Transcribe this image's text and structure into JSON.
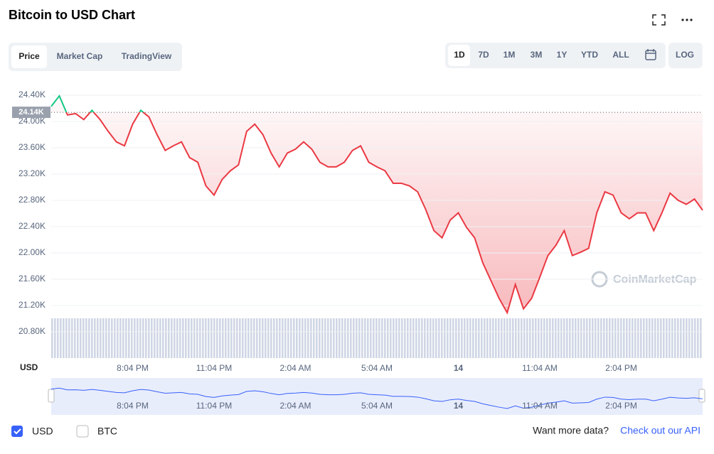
{
  "header": {
    "title": "Bitcoin to USD Chart"
  },
  "tabs": [
    "Price",
    "Market Cap",
    "TradingView"
  ],
  "ranges": [
    "1D",
    "7D",
    "1M",
    "3M",
    "1Y",
    "YTD",
    "ALL"
  ],
  "log_button": "LOG",
  "legend": [
    "USD",
    "BTC"
  ],
  "footer": {
    "text": "Want more data?",
    "link": "Check out our API"
  },
  "watermark": "CoinMarketCap",
  "chart_data": {
    "type": "line",
    "currency_label": "USD",
    "color": "#ea3943",
    "above_color": "#16c784",
    "reference": {
      "value": 24140,
      "label": "24.14K"
    },
    "categories": [
      null,
      null,
      null,
      null,
      null,
      null,
      null,
      null,
      null,
      null,
      "8:04 PM",
      null,
      null,
      null,
      null,
      null,
      null,
      null,
      null,
      null,
      "11:04 PM",
      null,
      null,
      null,
      null,
      null,
      null,
      null,
      null,
      null,
      "2:04 AM",
      null,
      null,
      null,
      null,
      null,
      null,
      null,
      null,
      null,
      "5:04 AM",
      null,
      null,
      null,
      null,
      null,
      null,
      null,
      null,
      null,
      "14",
      null,
      null,
      null,
      null,
      null,
      null,
      null,
      null,
      null,
      "11:04 AM",
      null,
      null,
      null,
      null,
      null,
      null,
      null,
      null,
      null,
      "2:04 PM",
      null,
      null,
      null,
      null,
      null,
      null,
      null,
      null,
      null,
      null
    ],
    "values": [
      24230,
      24390,
      24100,
      24120,
      24030,
      24170,
      24030,
      23850,
      23690,
      23630,
      23960,
      24170,
      24070,
      23800,
      23560,
      23630,
      23690,
      23450,
      23380,
      23020,
      22880,
      23120,
      23250,
      23340,
      23850,
      23960,
      23800,
      23520,
      23310,
      23520,
      23580,
      23690,
      23580,
      23380,
      23310,
      23310,
      23380,
      23560,
      23630,
      23380,
      23310,
      23250,
      23060,
      23060,
      23020,
      22930,
      22660,
      22340,
      22230,
      22500,
      22610,
      22390,
      22230,
      21850,
      21580,
      21310,
      21090,
      21520,
      21150,
      21310,
      21630,
      21960,
      22120,
      22340,
      21960,
      22010,
      22070,
      22610,
      22930,
      22880,
      22610,
      22520,
      22610,
      22610,
      22340,
      22610,
      22910,
      22800,
      22740,
      22820,
      22650
    ],
    "ylim": [
      20400,
      24530
    ],
    "yticks": [
      {
        "value": 24400,
        "label": "24.40K"
      },
      {
        "value": 24000,
        "label": "24.00K"
      },
      {
        "value": 23600,
        "label": "23.60K"
      },
      {
        "value": 23200,
        "label": "23.20K"
      },
      {
        "value": 22800,
        "label": "22.80K"
      },
      {
        "value": 22400,
        "label": "22.40K"
      },
      {
        "value": 22000,
        "label": "22.00K"
      },
      {
        "value": 21600,
        "label": "21.60K"
      },
      {
        "value": 21200,
        "label": "21.20K"
      },
      {
        "value": 20800,
        "label": "20.80K"
      }
    ],
    "grid": true
  }
}
